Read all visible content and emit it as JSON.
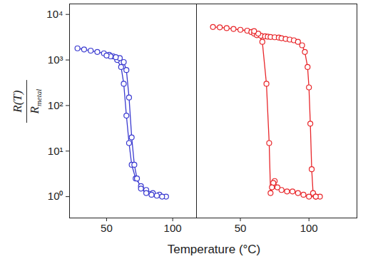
{
  "chart_data": {
    "type": "line",
    "xlabel": "Temperature (°C)",
    "ylabel": {
      "numerator": "R(T)",
      "denominator": "R",
      "subscript": "metal"
    },
    "panels": [
      {
        "type": "line",
        "color": "#3a3ad0",
        "marker": "circle",
        "log": "y",
        "tick_labels": true,
        "xlim": [
          22,
          118
        ],
        "xticks": [
          50,
          100
        ],
        "ylim": [
          0.34,
          17000
        ],
        "yticks": [
          {
            "value": 1,
            "label": "10⁰"
          },
          {
            "value": 10,
            "label": "10¹"
          },
          {
            "value": 100,
            "label": "10²"
          },
          {
            "value": 1000,
            "label": "10³"
          },
          {
            "value": 10000,
            "label": "10⁴"
          }
        ],
        "x": [
          28,
          33,
          38,
          43,
          48,
          52,
          55,
          58,
          61,
          63,
          65,
          67,
          69,
          72,
          76,
          80,
          85,
          90,
          95,
          92,
          88,
          84,
          80,
          76,
          73,
          71,
          69,
          67,
          65,
          63,
          60,
          57,
          53,
          50
        ],
        "values": [
          1800,
          1700,
          1600,
          1500,
          1400,
          1300,
          1200,
          1000,
          700,
          300,
          60,
          15,
          5,
          2.5,
          1.7,
          1.4,
          1.2,
          1.1,
          1.0,
          1.0,
          1.05,
          1.1,
          1.2,
          1.5,
          2.5,
          5,
          20,
          150,
          600,
          900,
          1100,
          1150,
          1200,
          1250
        ]
      },
      {
        "type": "line",
        "color": "#e8262a",
        "marker": "circle",
        "log": "y",
        "tick_labels": "x",
        "xlim": [
          18,
          135
        ],
        "xticks": [
          50,
          100
        ],
        "ylim": [
          0.34,
          17000
        ],
        "yticks": [
          1,
          10,
          100,
          1000,
          10000
        ],
        "x": [
          30,
          35,
          40,
          45,
          50,
          55,
          58,
          60,
          62,
          65,
          68,
          70,
          72,
          75,
          78,
          80,
          83,
          86,
          89,
          92,
          95,
          97,
          99,
          100,
          101,
          102,
          103,
          105,
          108,
          105,
          100,
          96,
          92,
          88,
          84,
          80,
          77,
          75,
          74,
          73,
          72,
          71,
          69,
          66,
          63,
          60
        ],
        "values": [
          5300,
          5200,
          5000,
          4800,
          4600,
          4400,
          4100,
          3800,
          3500,
          3400,
          3300,
          3250,
          3200,
          3150,
          3100,
          3000,
          2900,
          2800,
          2700,
          2500,
          2100,
          1500,
          700,
          250,
          40,
          4,
          1.2,
          1.0,
          1.0,
          1.0,
          1.0,
          1.1,
          1.2,
          1.3,
          1.3,
          1.4,
          1.6,
          2.2,
          2.0,
          1.6,
          1.2,
          15,
          300,
          2500,
          3800,
          4300
        ]
      }
    ]
  }
}
